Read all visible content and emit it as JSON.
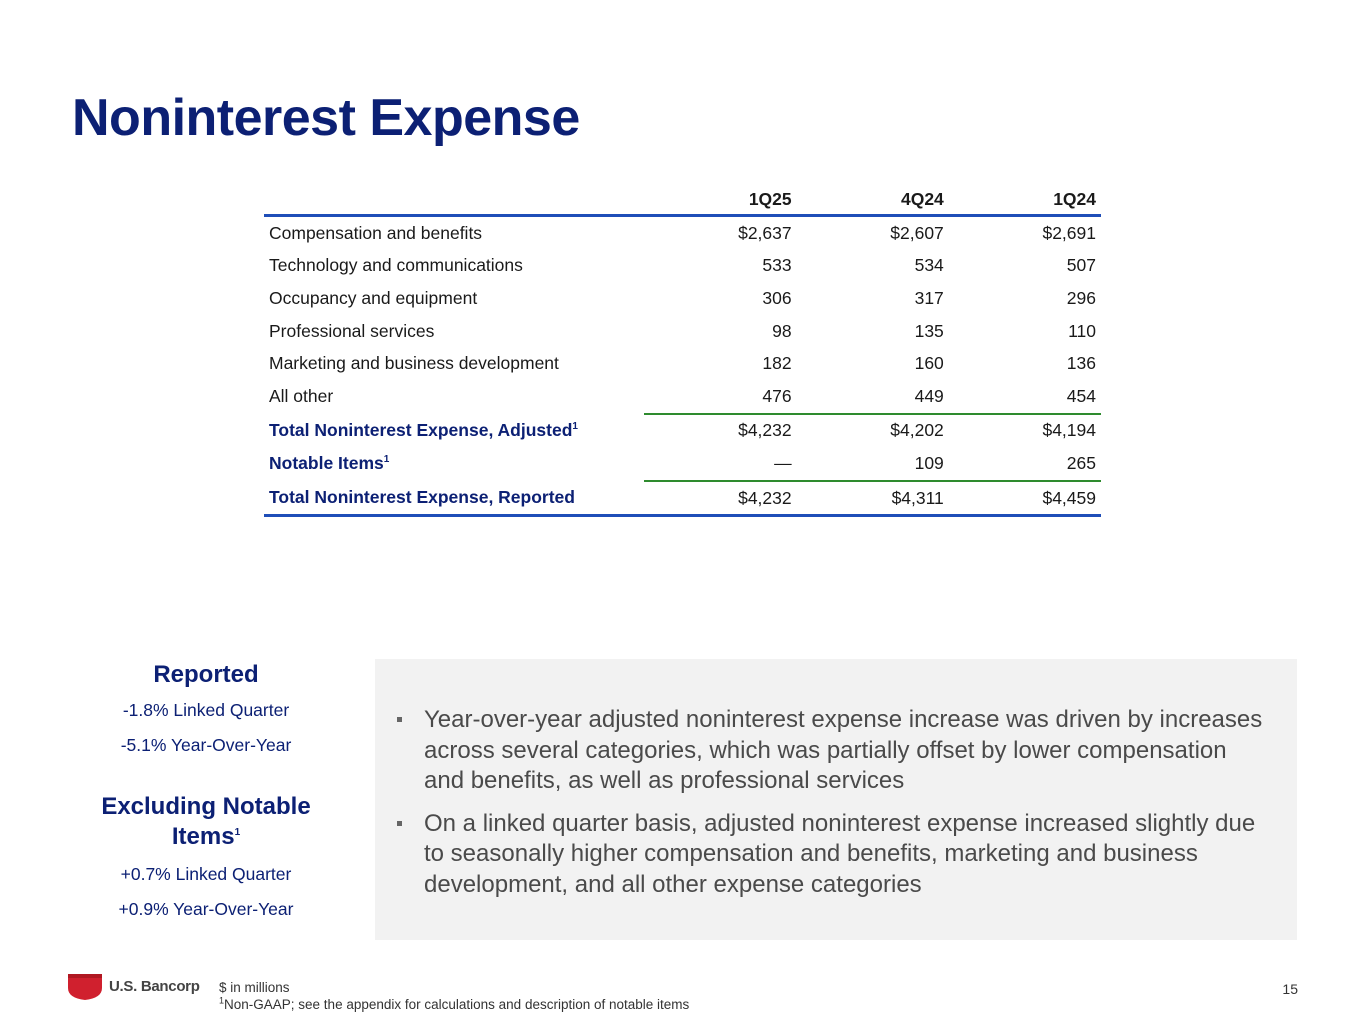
{
  "title": "Noninterest Expense",
  "table": {
    "columns": [
      "1Q25",
      "4Q24",
      "1Q24"
    ],
    "rows": [
      {
        "label": "Compensation and benefits",
        "values": [
          "$2,637",
          "$2,607",
          "$2,691"
        ]
      },
      {
        "label": "Technology and communications",
        "values": [
          "533",
          "534",
          "507"
        ]
      },
      {
        "label": "Occupancy and equipment",
        "values": [
          "306",
          "317",
          "296"
        ]
      },
      {
        "label": "Professional services",
        "values": [
          "98",
          "135",
          "110"
        ]
      },
      {
        "label": "Marketing and business development",
        "values": [
          "182",
          "160",
          "136"
        ]
      },
      {
        "label": "All other",
        "values": [
          "476",
          "449",
          "454"
        ]
      },
      {
        "label": "Total Noninterest Expense, Adjusted",
        "sup": "1",
        "values": [
          "$4,232",
          "$4,202",
          "$4,194"
        ]
      },
      {
        "label": "Notable Items",
        "sup": "1",
        "values": [
          "—",
          "109",
          "265"
        ]
      },
      {
        "label": "Total Noninterest Expense, Reported",
        "values": [
          "$4,232",
          "$4,311",
          "$4,459"
        ]
      }
    ]
  },
  "sidebar": {
    "reported": {
      "heading": "Reported",
      "linked": "-1.8% Linked Quarter",
      "yoy": "-5.1% Year-Over-Year"
    },
    "excluding": {
      "heading_line1": "Excluding Notable",
      "heading_line2": "Items",
      "sup": "1",
      "linked": "+0.7% Linked Quarter",
      "yoy": "+0.9% Year-Over-Year"
    }
  },
  "bullets": [
    "Year-over-year adjusted noninterest expense increase was driven by increases across several categories, which was partially offset by lower compensation and benefits, as well as professional services",
    "On a linked quarter basis, adjusted noninterest expense increased slightly due to seasonally higher compensation and benefits, marketing and business development, and all other expense categories"
  ],
  "footer": {
    "logo_text": "U.S. Bancorp",
    "note1": "$ in millions",
    "note2_sup": "1",
    "note2": "Non-GAAP; see the appendix for calculations and description of notable items",
    "page_number": "15"
  },
  "colors": {
    "brand_navy": "#0c2074",
    "rule_blue": "#1f4eb8",
    "rule_green": "#2e8b2e",
    "logo_red": "#d0202e",
    "box_gray": "#f2f2f2"
  }
}
